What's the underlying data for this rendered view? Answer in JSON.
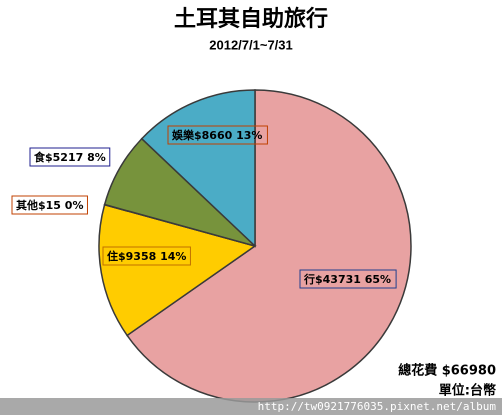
{
  "chart_data": {
    "type": "pie",
    "title": "土耳其自助旅行",
    "subtitle": "2012/7/1~7/31",
    "categories": [
      "行",
      "住",
      "其他",
      "食",
      "娛樂"
    ],
    "values": [
      43731,
      9358,
      15,
      5217,
      8660
    ],
    "value_labels": [
      "$43731 65%",
      "$9358 14%",
      "$15 0%",
      "$5217 8%",
      "$8660 13%"
    ],
    "colors": [
      "#e8a2a2",
      "#ffcc00",
      "#8a8a8a",
      "#77933c",
      "#4bacc6"
    ],
    "notes": [
      "總花費 $66980",
      "單位:台幣"
    ],
    "watermark": "http://tw0921776035.pixnet.net/album"
  }
}
